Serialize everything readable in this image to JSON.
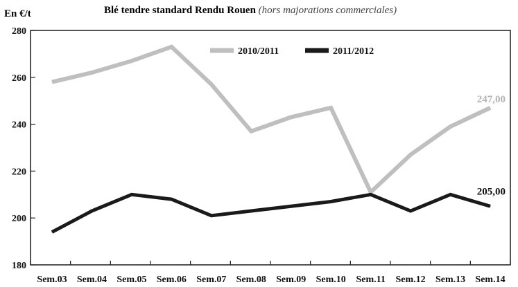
{
  "chart_data": {
    "type": "line",
    "title": "Blé tendre standard Rendu Rouen",
    "subtitle": "(hors majorations commerciales)",
    "ylabel": "En €/t",
    "xlabel": "",
    "categories": [
      "Sem.03",
      "Sem.04",
      "Sem.05",
      "Sem.06",
      "Sem.07",
      "Sem.08",
      "Sem.09",
      "Sem.10",
      "Sem.11",
      "Sem.12",
      "Sem.13",
      "Sem.14"
    ],
    "ylim": [
      180,
      280
    ],
    "yticks": [
      180,
      200,
      220,
      240,
      260,
      280
    ],
    "grid": false,
    "legend_position": "top-right",
    "series": [
      {
        "name": "2010/2011",
        "color": "#bfbfbf",
        "values": [
          258,
          262,
          267,
          273,
          257,
          237,
          243,
          247,
          211,
          227,
          239,
          247
        ],
        "end_label": "247,00"
      },
      {
        "name": "2011/2012",
        "color": "#1a1a1a",
        "values": [
          194,
          203,
          210,
          208,
          201,
          203,
          205,
          207,
          210,
          203,
          210,
          205
        ],
        "end_label": "205,00"
      }
    ]
  }
}
